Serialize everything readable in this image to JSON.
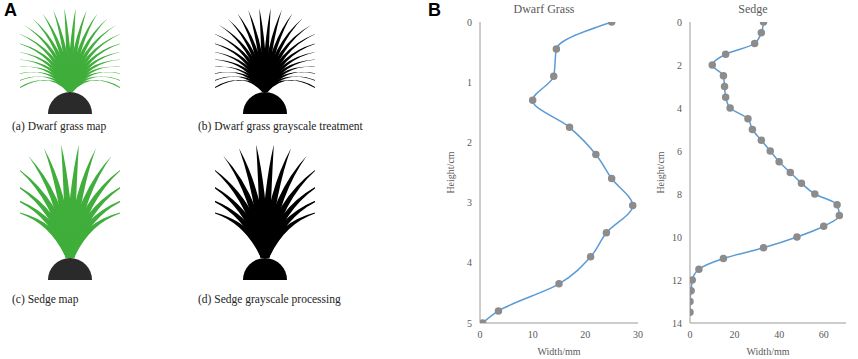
{
  "figure": {
    "panel_labels": [
      "A",
      "B"
    ],
    "images": [
      {
        "caption": "(a) Dwarf grass map"
      },
      {
        "caption": "(b) Dwarf grass grayscale treatment"
      },
      {
        "caption": "(c) Sedge map"
      },
      {
        "caption": "(d) Sedge grayscale processing"
      }
    ]
  },
  "chart_data": [
    {
      "type": "line",
      "title": "Dwarf Grass",
      "x_label": "Width/mm",
      "y_label": "Height/cm",
      "x": [
        25,
        14.5,
        14,
        10,
        17,
        22,
        25,
        29,
        24,
        21,
        15,
        3.5,
        0.5
      ],
      "values": [
        0,
        0.45,
        0.9,
        1.3,
        1.75,
        2.2,
        2.6,
        3.05,
        3.5,
        3.9,
        4.35,
        4.8,
        5
      ],
      "color": "#5b9bd5",
      "marker": "circle",
      "line_style": "solid",
      "xlim": [
        0,
        30
      ],
      "xticks": [
        0,
        10,
        20,
        30
      ],
      "ylim": [
        0,
        5
      ],
      "yticks": [
        0,
        1,
        2,
        3,
        4,
        5
      ],
      "grid": false
    },
    {
      "type": "line",
      "title": "Sedge",
      "x_label": "Width/mm",
      "y_label": "Height/cm",
      "x": [
        33,
        32,
        29,
        16,
        10,
        15,
        15.5,
        16,
        18,
        26,
        28,
        32,
        36,
        40,
        45,
        50,
        56,
        66,
        67,
        60,
        48,
        33,
        15,
        4,
        1,
        0.5,
        0,
        0
      ],
      "values": [
        0,
        0.5,
        1,
        1.5,
        2,
        2.5,
        3,
        3.5,
        4,
        4.5,
        5,
        5.5,
        6,
        6.5,
        7,
        7.5,
        8,
        8.5,
        9,
        9.5,
        10,
        10.5,
        11,
        11.5,
        12,
        12.5,
        13,
        13.5
      ],
      "color": "#5b9bd5",
      "marker": "circle",
      "line_style": "solid",
      "xlim": [
        0,
        70
      ],
      "xticks": [
        0,
        20,
        40,
        60
      ],
      "ylim": [
        0,
        14
      ],
      "yticks": [
        0,
        2,
        4,
        6,
        8,
        10,
        12,
        14
      ],
      "grid": false
    }
  ]
}
